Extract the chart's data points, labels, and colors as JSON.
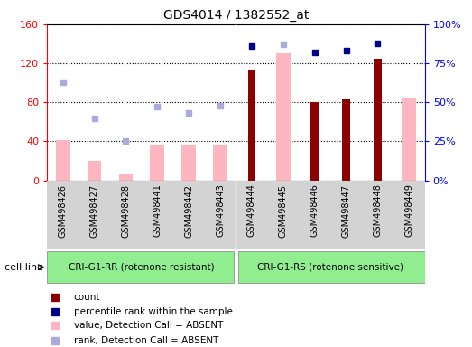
{
  "title": "GDS4014 / 1382552_at",
  "samples": [
    "GSM498426",
    "GSM498427",
    "GSM498428",
    "GSM498441",
    "GSM498442",
    "GSM498443",
    "GSM498444",
    "GSM498445",
    "GSM498446",
    "GSM498447",
    "GSM498448",
    "GSM498449"
  ],
  "group1_label": "CRI-G1-RR (rotenone resistant)",
  "group2_label": "CRI-G1-RS (rotenone sensitive)",
  "group1_count": 6,
  "group2_count": 6,
  "ylim_left": [
    0,
    160
  ],
  "ylim_right": [
    0,
    100
  ],
  "yticks_left": [
    0,
    40,
    80,
    120,
    160
  ],
  "yticks_right": [
    0,
    25,
    50,
    75,
    100
  ],
  "value_absent": [
    41,
    20,
    7,
    37,
    36,
    36,
    null,
    130,
    null,
    null,
    null,
    85
  ],
  "rank_absent": [
    63,
    40,
    25,
    47,
    43,
    48,
    null,
    87,
    null,
    null,
    null,
    null
  ],
  "count": [
    null,
    null,
    null,
    null,
    null,
    null,
    113,
    null,
    80,
    83,
    125,
    null
  ],
  "percentile": [
    null,
    null,
    null,
    null,
    null,
    null,
    86,
    null,
    82,
    83,
    88,
    null
  ],
  "color_value_absent": "#FFB6C1",
  "color_rank_absent": "#AAAADD",
  "color_count": "#8B0000",
  "color_percentile": "#00008B",
  "bar_facecolor": "white",
  "grid_color": "black",
  "spine_color_left": "red",
  "spine_color_right": "blue",
  "group_bg": "#90EE90",
  "xtick_area_bg": "#D3D3D3",
  "cell_line_label": "cell line",
  "legend_items": [
    {
      "color": "#8B0000",
      "label": "count"
    },
    {
      "color": "#00008B",
      "label": "percentile rank within the sample"
    },
    {
      "color": "#FFB6C1",
      "label": "value, Detection Call = ABSENT"
    },
    {
      "color": "#AAAADD",
      "label": "rank, Detection Call = ABSENT"
    }
  ]
}
